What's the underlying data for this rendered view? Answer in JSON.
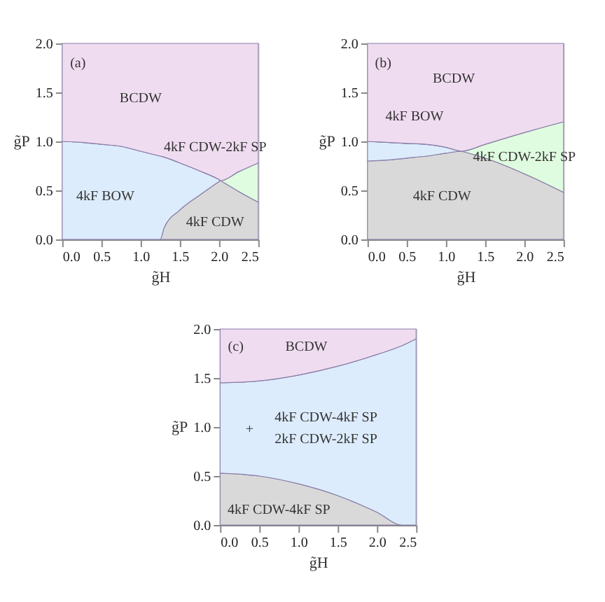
{
  "chart_data": [
    {
      "type": "area",
      "stacked": true,
      "xlabel": "g̃H",
      "ylabel": "g̃P",
      "xlim": [
        0,
        2.5
      ],
      "ylim": [
        0,
        2
      ],
      "xticks": [
        {
          "value": 0,
          "label": "0.0"
        },
        0.5,
        {
          "value": 1,
          "label": "1.0"
        },
        1.5,
        {
          "value": 2,
          "label": "2.0"
        },
        2.5
      ],
      "yticks": [
        {
          "value": 0,
          "label": "0.0"
        },
        {
          "value": 0.5,
          "label": "0.5"
        },
        {
          "value": 1,
          "label": "1.0"
        },
        {
          "value": 1.5,
          "label": "1.5"
        },
        {
          "value": 2,
          "label": "2.0"
        }
      ],
      "grid": false,
      "x": [
        0,
        0.25,
        0.5,
        0.75,
        1.0,
        1.25,
        1.3,
        1.5,
        1.75,
        2.0,
        2.02,
        2.25,
        2.5
      ],
      "series": [
        {
          "color": "#d9d9d9",
          "values": [
            0,
            0,
            0,
            0,
            0,
            0,
            0.12,
            0.3,
            0.45,
            0.59,
            0.6,
            0.49,
            0.38
          ]
        },
        {
          "color": "#dcecfc",
          "values": [
            1.0,
            0.99,
            0.97,
            0.95,
            0.9,
            0.85,
            0.72,
            0.48,
            0.25,
            0.02,
            0,
            0,
            0
          ]
        },
        {
          "color": "#e0fce0",
          "values": [
            0,
            0,
            0,
            0,
            0,
            0,
            0,
            0,
            0,
            0,
            0,
            0.2,
            0.4
          ]
        },
        {
          "color": "#f0dcf0",
          "values": [
            1.0,
            1.01,
            1.03,
            1.05,
            1.1,
            1.15,
            1.16,
            1.22,
            1.3,
            1.39,
            1.4,
            1.31,
            1.22
          ]
        }
      ],
      "annotations": [
        "(a)",
        "BCDW",
        "4kF CDW-2kF SP",
        "4kF BOW",
        "4kF CDW"
      ]
    },
    {
      "type": "area",
      "stacked": true,
      "xlabel": "g̃H",
      "ylabel": "g̃P",
      "xlim": [
        0,
        2.5
      ],
      "ylim": [
        0,
        2
      ],
      "xticks": [
        {
          "value": 0,
          "label": "0.0"
        },
        0.5,
        {
          "value": 1,
          "label": "1.0"
        },
        1.5,
        {
          "value": 2,
          "label": "2.0"
        },
        2.5
      ],
      "yticks": [
        {
          "value": 0,
          "label": "0.0"
        },
        {
          "value": 0.5,
          "label": "0.5"
        },
        {
          "value": 1,
          "label": "1.0"
        },
        {
          "value": 1.5,
          "label": "1.5"
        },
        {
          "value": 2,
          "label": "2.0"
        }
      ],
      "grid": false,
      "x": [
        0,
        0.25,
        0.5,
        0.75,
        1.0,
        1.2,
        1.5,
        2.0,
        2.5
      ],
      "series": [
        {
          "color": "#d9d9d9",
          "values": [
            0.8,
            0.81,
            0.83,
            0.85,
            0.88,
            0.9,
            0.83,
            0.67,
            0.48
          ]
        },
        {
          "color": "#dcecfc",
          "values": [
            0.2,
            0.18,
            0.15,
            0.12,
            0.06,
            0,
            0,
            0,
            0
          ]
        },
        {
          "color": "#e0fce0",
          "values": [
            0,
            0,
            0,
            0,
            0,
            0,
            0.14,
            0.42,
            0.72
          ]
        },
        {
          "color": "#f0dcf0",
          "values": [
            1.0,
            1.01,
            1.02,
            1.03,
            1.06,
            1.1,
            1.03,
            0.91,
            0.8
          ]
        }
      ],
      "annotations": [
        "(b)",
        "BCDW",
        "4kF BOW",
        "4kF CDW-2kF SP",
        "4kF CDW"
      ]
    },
    {
      "type": "area",
      "stacked": true,
      "xlabel": "g̃H",
      "ylabel": "g̃P",
      "xlim": [
        0,
        2.5
      ],
      "ylim": [
        0,
        2
      ],
      "xticks": [
        {
          "value": 0,
          "label": "0.0"
        },
        0.5,
        {
          "value": 1,
          "label": "1.0"
        },
        1.5,
        {
          "value": 2,
          "label": "2.0"
        },
        2.5
      ],
      "yticks": [
        {
          "value": 0,
          "label": "0.0"
        },
        {
          "value": 0.5,
          "label": "0.5"
        },
        {
          "value": 1,
          "label": "1.0"
        },
        {
          "value": 1.5,
          "label": "1.5"
        },
        {
          "value": 2,
          "label": "2.0"
        }
      ],
      "grid": false,
      "x": [
        0,
        0.5,
        1.0,
        1.5,
        2.0,
        2.32,
        2.5
      ],
      "series": [
        {
          "color": "#d9d9d9",
          "values": [
            0.53,
            0.5,
            0.42,
            0.3,
            0.13,
            0,
            0
          ]
        },
        {
          "color": "#dcecfc",
          "values": [
            0.92,
            0.97,
            1.11,
            1.32,
            1.61,
            1.83,
            1.9
          ]
        },
        {
          "color": "#f0dcf0",
          "values": [
            0.55,
            0.53,
            0.47,
            0.38,
            0.26,
            0.17,
            0.1
          ]
        }
      ],
      "annotations": [
        "(c)",
        "BCDW",
        "+",
        "4kF CDW-4kF SP",
        "2kF CDW-2kF SP",
        "4kF CDW-4kF SP"
      ]
    }
  ]
}
